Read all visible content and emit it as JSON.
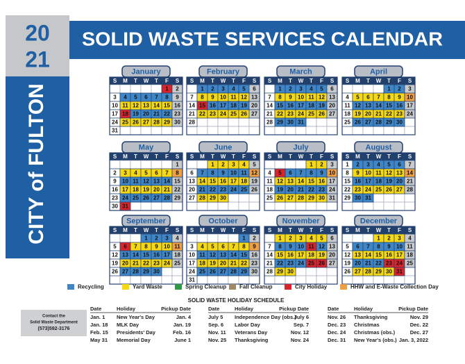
{
  "header": {
    "year_top": "20",
    "year_bottom": "21",
    "city": "CITY of FULTON",
    "title": "SOLID WASTE SERVICES CALENDAR"
  },
  "weekdays": [
    "S",
    "M",
    "T",
    "W",
    "T",
    "F",
    "S"
  ],
  "palette": {
    "w": "#ffffff",
    "g": "#c9cacc"
  },
  "legend": [
    {
      "name": "Recycling",
      "color": "#3f86c8",
      "code": "b"
    },
    {
      "name": "Yard Waste",
      "color": "#f6d914",
      "code": "y"
    },
    {
      "name": "Spring Cleanup",
      "color": "#2f9a45",
      "code": "s"
    },
    {
      "name": "Fall Cleanup",
      "color": "#a08a68",
      "code": "f"
    },
    {
      "name": "City Holiday",
      "color": "#d8242b",
      "code": "r"
    },
    {
      "name": "HHW and E-Waste Collection Day",
      "color": "#f0a044",
      "code": "o"
    }
  ],
  "months": [
    {
      "name": "January",
      "start": 5,
      "codes": "rgwbbbbbgwyyyyygwrbbbbgwyyyyygw",
      "days": [
        1,
        2,
        3,
        4,
        5,
        6,
        7,
        8,
        9,
        10,
        11,
        12,
        13,
        14,
        15,
        16,
        17,
        18,
        19,
        20,
        21,
        22,
        23,
        24,
        25,
        26,
        27,
        28,
        29,
        30,
        31
      ]
    },
    {
      "name": "February",
      "start": 1,
      "codes": "bbbbbgwyyyyygwrbbbbgwyyyyygw",
      "days": [
        1,
        2,
        3,
        4,
        5,
        6,
        7,
        8,
        9,
        10,
        11,
        12,
        13,
        14,
        15,
        16,
        17,
        18,
        19,
        20,
        21,
        22,
        23,
        24,
        25,
        26,
        27,
        28
      ]
    },
    {
      "name": "March",
      "start": 1,
      "codes": "bbbbbgwyyyyygwbbbbbgwyyyyygwbbb",
      "days": [
        1,
        2,
        3,
        4,
        5,
        6,
        7,
        8,
        9,
        10,
        11,
        12,
        13,
        14,
        15,
        16,
        17,
        18,
        19,
        20,
        21,
        22,
        23,
        24,
        25,
        26,
        27,
        28,
        29,
        30,
        31
      ]
    },
    {
      "name": "April",
      "start": 4,
      "codes": "bbgwyyyyyowbbbbbgwyyyyygwbbbbb",
      "days": [
        1,
        2,
        3,
        4,
        5,
        6,
        7,
        8,
        9,
        10,
        11,
        12,
        13,
        14,
        15,
        16,
        17,
        18,
        19,
        20,
        21,
        22,
        23,
        24,
        25,
        26,
        27,
        28,
        29,
        30
      ]
    },
    {
      "name": "May",
      "start": 6,
      "codes": "gwyyyyyowbbbbbgwyyyyygwbbbbbgwr",
      "days": [
        1,
        2,
        3,
        4,
        5,
        6,
        7,
        8,
        9,
        10,
        11,
        12,
        13,
        14,
        15,
        16,
        17,
        18,
        19,
        20,
        21,
        22,
        23,
        24,
        25,
        26,
        27,
        28,
        29,
        30,
        31
      ]
    },
    {
      "name": "June",
      "start": 2,
      "codes": "yyyygwbbbbbowyyyyygwbbbbbgwyyy",
      "days": [
        1,
        2,
        3,
        4,
        5,
        6,
        7,
        8,
        9,
        10,
        11,
        12,
        13,
        14,
        15,
        16,
        17,
        18,
        19,
        20,
        21,
        22,
        23,
        24,
        25,
        26,
        27,
        28,
        29,
        30
      ]
    },
    {
      "name": "July",
      "start": 4,
      "codes": "yygwrbbbbowyyyyygwbbbbbgwyyyyyg",
      "days": [
        1,
        2,
        3,
        4,
        5,
        6,
        7,
        8,
        9,
        10,
        11,
        12,
        13,
        14,
        15,
        16,
        17,
        18,
        19,
        20,
        21,
        22,
        23,
        24,
        25,
        26,
        27,
        28,
        29,
        30,
        31
      ]
    },
    {
      "name": "August",
      "start": 0,
      "codes": "wbbbbbgwyyyyyowbbbbbgwyyyyygwbb",
      "days": [
        1,
        2,
        3,
        4,
        5,
        6,
        7,
        8,
        9,
        10,
        11,
        12,
        13,
        14,
        15,
        16,
        17,
        18,
        19,
        20,
        21,
        22,
        23,
        24,
        25,
        26,
        27,
        28,
        29,
        30,
        31
      ]
    },
    {
      "name": "September",
      "start": 3,
      "codes": "bbbgwryyyyowbbbbbgwyyyyygwbbbb",
      "days": [
        1,
        2,
        3,
        4,
        5,
        6,
        7,
        8,
        9,
        10,
        11,
        12,
        13,
        14,
        15,
        16,
        17,
        18,
        19,
        20,
        21,
        22,
        23,
        24,
        25,
        26,
        27,
        28,
        29,
        30
      ]
    },
    {
      "name": "October",
      "start": 5,
      "codes": "bgwyyyyyowbbbbbgwyyyyygwbbbbbgw",
      "days": [
        1,
        2,
        3,
        4,
        5,
        6,
        7,
        8,
        9,
        10,
        11,
        12,
        13,
        14,
        15,
        16,
        17,
        18,
        19,
        20,
        21,
        22,
        23,
        24,
        25,
        26,
        27,
        28,
        29,
        30,
        31
      ]
    },
    {
      "name": "November",
      "start": 1,
      "codes": "yyyyygwbbbrbgwyyyyygwbbbrrgwyy",
      "days": [
        1,
        2,
        3,
        4,
        5,
        6,
        7,
        8,
        9,
        10,
        11,
        12,
        13,
        14,
        15,
        16,
        17,
        18,
        19,
        20,
        21,
        22,
        23,
        24,
        25,
        26,
        27,
        28,
        29,
        30
      ]
    },
    {
      "name": "December",
      "start": 3,
      "codes": "yyygwbbbbbgwyyyyygwbbbrrgwyyyyr",
      "days": [
        1,
        2,
        3,
        4,
        5,
        6,
        7,
        8,
        9,
        10,
        11,
        12,
        13,
        14,
        15,
        16,
        17,
        18,
        19,
        20,
        21,
        22,
        23,
        24,
        25,
        26,
        27,
        28,
        29,
        30,
        31
      ]
    }
  ],
  "contact": [
    "Contact the",
    "Solid Waste Department",
    "(573)592-3176"
  ],
  "holidays": {
    "title": "SOLID WASTE HOLIDAY SCHEDULE",
    "headers": [
      "Date",
      "Holiday",
      "Pickup Date"
    ],
    "groups": [
      [
        [
          "Jan. 1",
          "New Year's Day",
          "Jan. 4"
        ],
        [
          "Jan. 18",
          "MLK Day",
          "Jan. 19"
        ],
        [
          "Feb. 15",
          "Presidents' Day",
          "Feb. 16"
        ],
        [
          "May 31",
          "Memorial Day",
          "June 1"
        ]
      ],
      [
        [
          "July 5",
          "Independence Day (obs.)",
          "July 6"
        ],
        [
          "Sep. 6",
          "Labor Day",
          "Sep. 7"
        ],
        [
          "Nov. 11",
          "Veterans Day",
          "Nov. 12"
        ],
        [
          "Nov. 25",
          "Thanksgiving",
          "Nov. 24"
        ]
      ],
      [
        [
          "Nov. 26",
          "Thanksgiving",
          "Nov. 29"
        ],
        [
          "Dec. 23",
          "Christmas",
          "Dec. 22"
        ],
        [
          "Dec. 24",
          "Christmas (obs.)",
          "Dec. 27"
        ],
        [
          "Dec. 31",
          "New Year's (obs.)",
          "Jan. 3, 2022"
        ]
      ]
    ]
  }
}
